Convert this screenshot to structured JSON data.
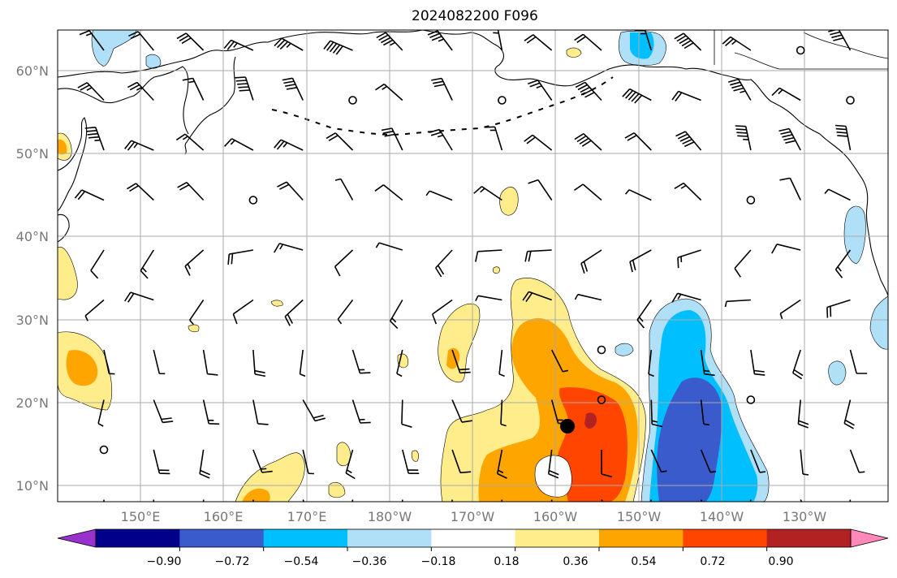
{
  "title": "2024082200 F096",
  "lat_labels": [
    "60°N",
    "50°N",
    "40°N",
    "30°N",
    "20°N",
    "10°N"
  ],
  "lon_labels": [
    "150°E",
    "160°E",
    "170°E",
    "180°W",
    "170°W",
    "160°W",
    "150°W",
    "140°W",
    "130°W"
  ],
  "colorbar": {
    "ticks": [
      "−0.90",
      "−0.72",
      "−0.54",
      "−0.36",
      "−0.18",
      "0.18",
      "0.36",
      "0.54",
      "0.72",
      "0.90"
    ],
    "colors": [
      "#9932cc",
      "#00008b",
      "#3a5bcc",
      "#00bfff",
      "#b0e0f8",
      "#ffffff",
      "#ffec8b",
      "#ffa500",
      "#ff4500",
      "#b22222",
      "#ff88b8"
    ]
  },
  "colors": {
    "light_blue": "#b0e0f8",
    "sky_blue": "#00bfff",
    "royal_blue": "#3a5bcc",
    "navy": "#00008b",
    "light_yellow": "#ffec8b",
    "orange": "#ffa500",
    "orange_red": "#ff4500",
    "dark_red": "#b22222",
    "grid": "#aaaaaa",
    "coast": "#000000"
  },
  "storm_marker": {
    "lat": 17,
    "lon": -159
  }
}
